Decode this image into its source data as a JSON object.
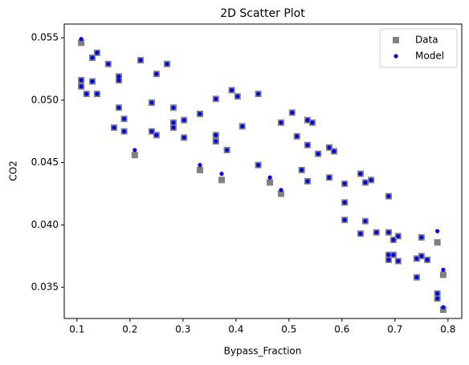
{
  "chart_data": {
    "type": "scatter",
    "title": "2D Scatter Plot",
    "x_label": "Bypass_Fraction",
    "y_label": "CO2",
    "xlim": [
      0.076,
      0.826
    ],
    "ylim": [
      0.0325,
      0.0561
    ],
    "xticks": [
      0.1,
      0.2,
      0.3,
      0.4,
      0.5,
      0.6,
      0.7,
      0.8
    ],
    "yticks": [
      0.035,
      {
        "value": 0.04,
        "label": "0.040"
      },
      0.045,
      {
        "value": 0.05,
        "label": "0.050"
      },
      0.055
    ],
    "legend": "upper right",
    "series": [
      {
        "name": "Data",
        "color": "#808080",
        "marker": "square",
        "x": [
          0.108,
          0.108,
          0.108,
          0.118,
          0.129,
          0.129,
          0.138,
          0.138,
          0.159,
          0.179,
          0.179,
          0.179,
          0.17,
          0.189,
          0.189,
          0.209,
          0.22,
          0.241,
          0.241,
          0.25,
          0.25,
          0.27,
          0.282,
          0.282,
          0.282,
          0.302,
          0.302,
          0.332,
          0.332,
          0.362,
          0.362,
          0.362,
          0.373,
          0.383,
          0.392,
          0.403,
          0.412,
          0.442,
          0.442,
          0.464,
          0.485,
          0.485,
          0.506,
          0.515,
          0.524,
          0.535,
          0.544,
          0.535,
          0.535,
          0.555,
          0.576,
          0.585,
          0.576,
          0.605,
          0.605,
          0.605,
          0.635,
          0.635,
          0.644,
          0.644,
          0.655,
          0.665,
          0.688,
          0.688,
          0.688,
          0.688,
          0.697,
          0.697,
          0.706,
          0.706,
          0.741,
          0.741,
          0.75,
          0.75,
          0.761,
          0.78,
          0.78,
          0.78,
          0.791,
          0.791
        ],
        "values": [
          0.0546,
          0.0516,
          0.0511,
          0.0505,
          0.0534,
          0.0515,
          0.0538,
          0.0505,
          0.0529,
          0.0519,
          0.0516,
          0.0494,
          0.0478,
          0.0485,
          0.0475,
          0.0456,
          0.0532,
          0.0498,
          0.0475,
          0.0521,
          0.0472,
          0.0529,
          0.0494,
          0.0482,
          0.0478,
          0.0484,
          0.047,
          0.0444,
          0.0489,
          0.0501,
          0.0472,
          0.0467,
          0.0436,
          0.046,
          0.0508,
          0.0503,
          0.0479,
          0.0505,
          0.0448,
          0.0434,
          0.0482,
          0.0425,
          0.049,
          0.0471,
          0.0444,
          0.0484,
          0.0482,
          0.0464,
          0.0435,
          0.0457,
          0.0462,
          0.0459,
          0.0438,
          0.0433,
          0.0418,
          0.0404,
          0.0441,
          0.0393,
          0.0434,
          0.0403,
          0.0436,
          0.0394,
          0.0423,
          0.0394,
          0.0376,
          0.0372,
          0.0388,
          0.0376,
          0.0391,
          0.0371,
          0.0358,
          0.0373,
          0.039,
          0.0375,
          0.0372,
          0.0386,
          0.0345,
          0.0341,
          0.036,
          0.0332
        ]
      },
      {
        "name": "Model",
        "color": "#0000ff",
        "marker": "circle",
        "x": [
          0.108,
          0.108,
          0.108,
          0.118,
          0.129,
          0.129,
          0.138,
          0.138,
          0.159,
          0.179,
          0.179,
          0.179,
          0.17,
          0.189,
          0.189,
          0.209,
          0.22,
          0.241,
          0.241,
          0.25,
          0.25,
          0.27,
          0.282,
          0.282,
          0.282,
          0.302,
          0.302,
          0.332,
          0.332,
          0.362,
          0.362,
          0.362,
          0.373,
          0.383,
          0.392,
          0.403,
          0.412,
          0.442,
          0.442,
          0.464,
          0.485,
          0.485,
          0.506,
          0.515,
          0.524,
          0.535,
          0.544,
          0.535,
          0.535,
          0.555,
          0.576,
          0.585,
          0.576,
          0.605,
          0.605,
          0.605,
          0.635,
          0.635,
          0.644,
          0.644,
          0.655,
          0.665,
          0.688,
          0.688,
          0.688,
          0.688,
          0.697,
          0.697,
          0.706,
          0.706,
          0.741,
          0.741,
          0.75,
          0.75,
          0.761,
          0.78,
          0.78,
          0.78,
          0.791,
          0.791
        ],
        "values": [
          0.0549,
          0.0516,
          0.0511,
          0.0505,
          0.0534,
          0.0515,
          0.0538,
          0.0505,
          0.0529,
          0.0519,
          0.0516,
          0.0494,
          0.0478,
          0.0485,
          0.0475,
          0.046,
          0.0532,
          0.0498,
          0.0475,
          0.0521,
          0.0472,
          0.0529,
          0.0494,
          0.0482,
          0.0478,
          0.0484,
          0.047,
          0.0448,
          0.0489,
          0.0501,
          0.0472,
          0.0467,
          0.0441,
          0.046,
          0.0508,
          0.0503,
          0.0479,
          0.0505,
          0.0448,
          0.0438,
          0.0482,
          0.0428,
          0.049,
          0.0471,
          0.0444,
          0.0484,
          0.0482,
          0.0464,
          0.0435,
          0.0457,
          0.0462,
          0.0459,
          0.0438,
          0.0433,
          0.0418,
          0.0404,
          0.0441,
          0.0393,
          0.0434,
          0.0403,
          0.0436,
          0.0394,
          0.0423,
          0.0394,
          0.0376,
          0.0372,
          0.0388,
          0.0376,
          0.0391,
          0.0371,
          0.0358,
          0.0373,
          0.039,
          0.0375,
          0.0372,
          0.0395,
          0.0345,
          0.0341,
          0.0364,
          0.0334
        ]
      }
    ]
  }
}
